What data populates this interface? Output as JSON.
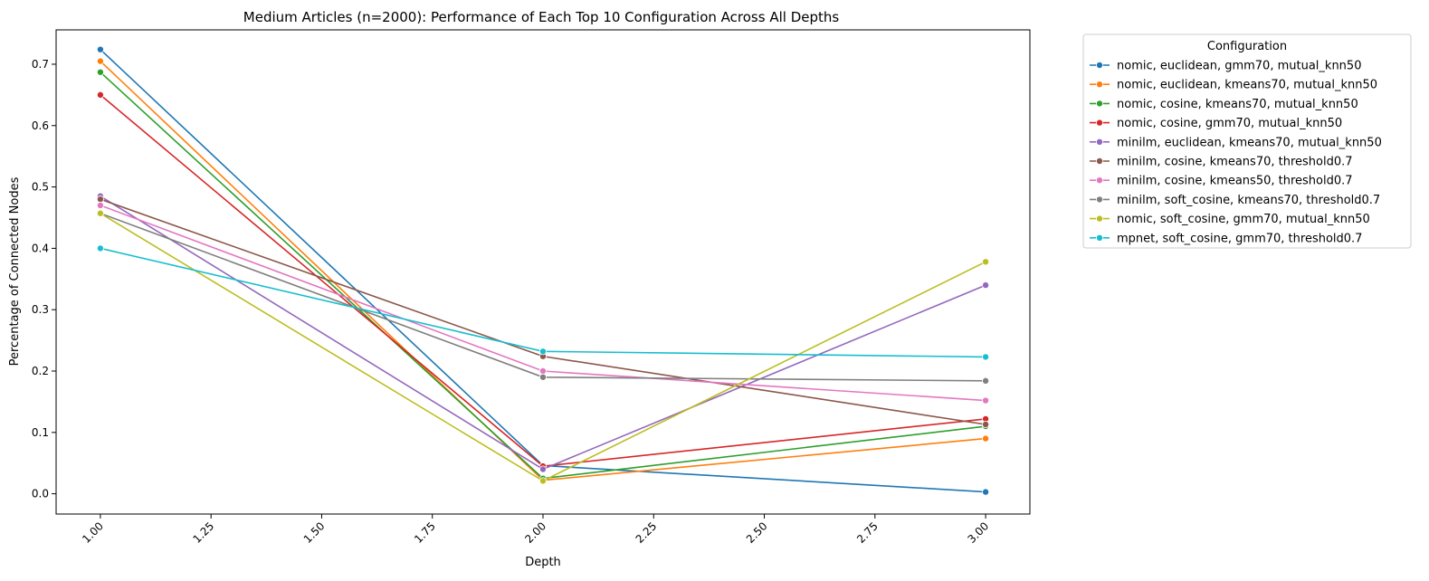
{
  "chart_data": {
    "type": "line",
    "title": "Medium Articles (n=2000): Performance of Each Top 10 Configuration Across All Depths",
    "xlabel": "Depth",
    "ylabel": "Percentage of Connected Nodes",
    "x": [
      1.0,
      2.0,
      3.0
    ],
    "xlim": [
      0.9,
      3.1
    ],
    "ylim": [
      -0.033,
      0.756
    ],
    "x_ticks": [
      "1.00",
      "1.25",
      "1.50",
      "1.75",
      "2.00",
      "2.25",
      "2.50",
      "2.75",
      "3.00"
    ],
    "y_ticks": [
      "0.0",
      "0.1",
      "0.2",
      "0.3",
      "0.4",
      "0.5",
      "0.6",
      "0.7"
    ],
    "grid": false,
    "legend_title": "Configuration",
    "legend_position": "outside-top-right",
    "series": [
      {
        "name": "nomic, euclidean, gmm70, mutual_knn50",
        "color": "#1f77b4",
        "values": [
          0.724,
          0.046,
          0.003
        ]
      },
      {
        "name": "nomic, euclidean, kmeans70, mutual_knn50",
        "color": "#ff7f0e",
        "values": [
          0.705,
          0.022,
          0.09
        ]
      },
      {
        "name": "nomic, cosine, kmeans70, mutual_knn50",
        "color": "#2ca02c",
        "values": [
          0.687,
          0.025,
          0.11
        ]
      },
      {
        "name": "nomic, cosine, gmm70, mutual_knn50",
        "color": "#d62728",
        "values": [
          0.65,
          0.045,
          0.122
        ]
      },
      {
        "name": "minilm, euclidean, kmeans70, mutual_knn50",
        "color": "#9467bd",
        "values": [
          0.485,
          0.04,
          0.34
        ]
      },
      {
        "name": "minilm, cosine, kmeans70, threshold0.7",
        "color": "#8c564b",
        "values": [
          0.48,
          0.224,
          0.113
        ]
      },
      {
        "name": "minilm, cosine, kmeans50, threshold0.7",
        "color": "#e377c2",
        "values": [
          0.47,
          0.2,
          0.152
        ]
      },
      {
        "name": "minilm, soft_cosine, kmeans70, threshold0.7",
        "color": "#7f7f7f",
        "values": [
          0.457,
          0.19,
          0.184
        ]
      },
      {
        "name": "nomic, soft_cosine, gmm70, mutual_knn50",
        "color": "#bcbd22",
        "values": [
          0.457,
          0.021,
          0.378
        ]
      },
      {
        "name": "mpnet, soft_cosine, gmm70, threshold0.7",
        "color": "#17becf",
        "values": [
          0.4,
          0.232,
          0.223
        ]
      }
    ]
  }
}
